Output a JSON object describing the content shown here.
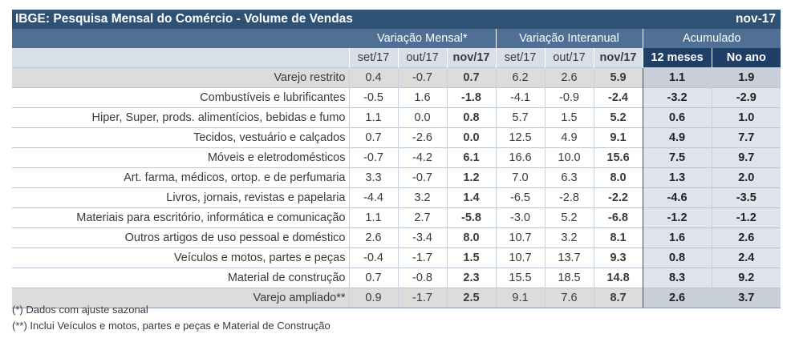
{
  "title": "IBGE: Pesquisa Mensal do Comércio - Volume de Vendas",
  "date": "nov-17",
  "group_headers": [
    "Variação Mensal*",
    "Variação Interanual",
    "Acumulado"
  ],
  "sub_headers": [
    "set/17",
    "out/17",
    "nov/17",
    "set/17",
    "out/17",
    "nov/17",
    "12 meses",
    "No ano"
  ],
  "rows": [
    {
      "label": "Varejo restrito",
      "values": [
        "0.4",
        "-0.7",
        "0.7",
        "6.2",
        "2.6",
        "5.9",
        "1.1",
        "1.9"
      ]
    },
    {
      "label": "Combustíveis e lubrificantes",
      "values": [
        "-0.5",
        "1.6",
        "-1.8",
        "-4.1",
        "-0.9",
        "-2.4",
        "-3.2",
        "-2.9"
      ]
    },
    {
      "label": "Hiper, Super, prods. alimentícios, bebidas e fumo",
      "values": [
        "1.1",
        "0.0",
        "0.8",
        "5.7",
        "1.5",
        "5.2",
        "0.6",
        "1.0"
      ]
    },
    {
      "label": "Tecidos, vestuário e calçados",
      "values": [
        "0.7",
        "-2.6",
        "0.0",
        "12.5",
        "4.9",
        "9.1",
        "4.9",
        "7.7"
      ]
    },
    {
      "label": "Móveis e eletrodomésticos",
      "values": [
        "-0.7",
        "-4.2",
        "6.1",
        "16.6",
        "10.0",
        "15.6",
        "7.5",
        "9.7"
      ]
    },
    {
      "label": "Art. farma, médicos, ortop. e de perfumaria",
      "values": [
        "3.3",
        "-0.7",
        "1.2",
        "7.0",
        "6.3",
        "8.0",
        "1.3",
        "2.0"
      ]
    },
    {
      "label": "Livros, jornais, revistas e papelaria",
      "values": [
        "-4.4",
        "3.2",
        "1.4",
        "-6.5",
        "-2.8",
        "-2.2",
        "-4.6",
        "-3.5"
      ]
    },
    {
      "label": "Materiais para escritório, informática e comunicação",
      "values": [
        "1.1",
        "2.7",
        "-5.8",
        "-3.0",
        "5.2",
        "-6.8",
        "-1.2",
        "-1.2"
      ]
    },
    {
      "label": "Outros artigos de uso pessoal e doméstico",
      "values": [
        "2.6",
        "-3.4",
        "8.0",
        "10.7",
        "3.2",
        "8.1",
        "1.6",
        "2.6"
      ]
    },
    {
      "label": "Veículos e motos, partes e peças",
      "values": [
        "-0.4",
        "-1.7",
        "1.5",
        "10.7",
        "13.7",
        "9.3",
        "0.8",
        "2.4"
      ]
    },
    {
      "label": "Material de construção",
      "values": [
        "0.7",
        "-0.8",
        "2.3",
        "15.5",
        "18.5",
        "14.8",
        "8.3",
        "9.2"
      ]
    },
    {
      "label": "Varejo ampliado**",
      "values": [
        "0.9",
        "-1.7",
        "2.5",
        "9.1",
        "7.6",
        "8.7",
        "2.6",
        "3.7"
      ]
    }
  ],
  "notes": [
    "(*) Dados com ajuste sazonal",
    "(**) Inclui Veículos e motos, partes e peças e Material de Construção"
  ]
}
